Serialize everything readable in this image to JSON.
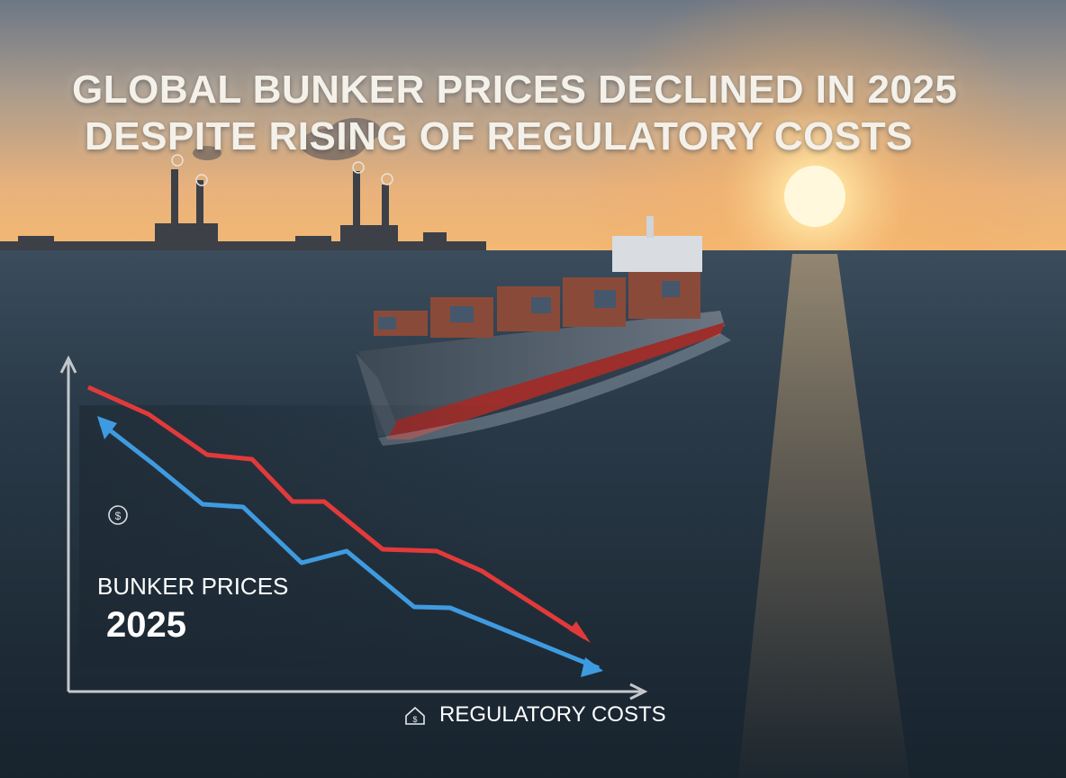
{
  "headline": {
    "line1": "GLOBAL BUNKER PRICES DECLINED IN 2025",
    "line2": "DESPITE RISING OF REGULATORY COSTS"
  },
  "chart_overlay": {
    "series_label": "BUNKER PRICES",
    "year_label": "2025",
    "x_axis_label": "REGULATORY COSTS",
    "icons": [
      "dollar-coin-icon",
      "home-dollar-icon"
    ],
    "series_colors": {
      "red": "#e23a3a",
      "blue": "#3f9be0"
    }
  },
  "scene": {
    "elements": [
      "sunset sky",
      "sun",
      "offshore refinery silhouettes",
      "calm sea",
      "container ship"
    ],
    "palette": {
      "sky_top": "#6f7a86",
      "sky_glow": "#f2b06a",
      "sun": "#fff4c8",
      "sea": "#1e2c38",
      "hull_red": "#9c2e2b",
      "hull_gray": "#4b5864"
    }
  }
}
